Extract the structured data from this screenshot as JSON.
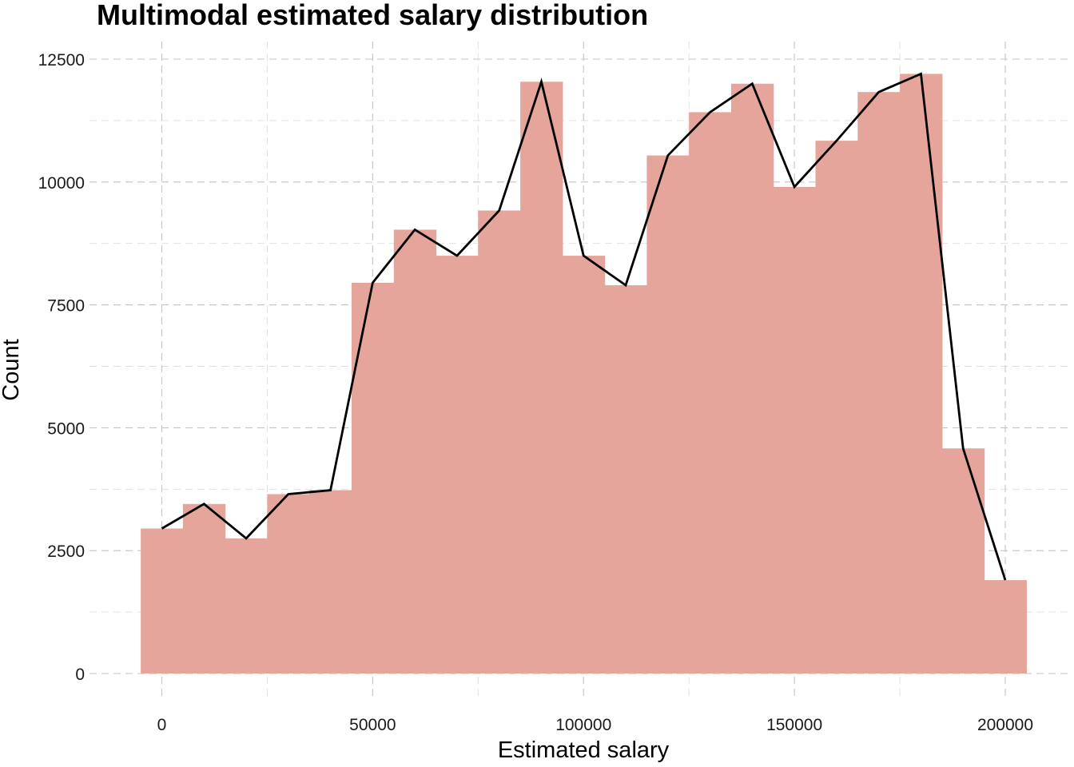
{
  "chart_data": {
    "type": "bar",
    "title": "Multimodal estimated salary distribution",
    "xlabel": "Estimated salary",
    "ylabel": "Count",
    "x": [
      0,
      10000,
      20000,
      30000,
      40000,
      50000,
      60000,
      70000,
      80000,
      90000,
      100000,
      110000,
      120000,
      130000,
      140000,
      150000,
      160000,
      170000,
      180000,
      190000,
      200000
    ],
    "bin_width": 10000,
    "values": [
      2950,
      3450,
      2750,
      3650,
      3730,
      7950,
      9030,
      8500,
      9420,
      12040,
      8500,
      7900,
      10540,
      11420,
      12000,
      9900,
      10840,
      11830,
      12200,
      4580,
      1900
    ],
    "series": [
      {
        "type": "bar",
        "values": [
          2950,
          3450,
          2750,
          3650,
          3730,
          7950,
          9030,
          8500,
          9420,
          12040,
          8500,
          7900,
          10540,
          11420,
          12000,
          9900,
          10840,
          11830,
          12200,
          4580,
          1900
        ],
        "color": "#e5a59b"
      },
      {
        "type": "line",
        "values": [
          2950,
          3450,
          2750,
          3650,
          3730,
          7950,
          9030,
          8500,
          9420,
          12040,
          8500,
          7900,
          10540,
          11420,
          12000,
          9900,
          10840,
          11830,
          12200,
          4580,
          1900
        ],
        "color": "#000000"
      }
    ],
    "xlim": [
      -5000,
      205000
    ],
    "ylim": [
      0,
      12500
    ],
    "x_ticks": [
      0,
      50000,
      100000,
      150000,
      200000
    ],
    "x_tick_labels": [
      "0",
      "50000",
      "100000",
      "150000",
      "200000"
    ],
    "y_ticks": [
      0,
      2500,
      5000,
      7500,
      10000,
      12500
    ],
    "y_tick_labels": [
      "0",
      "2500",
      "5000",
      "7500",
      "10000",
      "12500"
    ],
    "grid": true,
    "legend": "none",
    "bar_color": "#e5a59b",
    "line_color": "#000000"
  }
}
